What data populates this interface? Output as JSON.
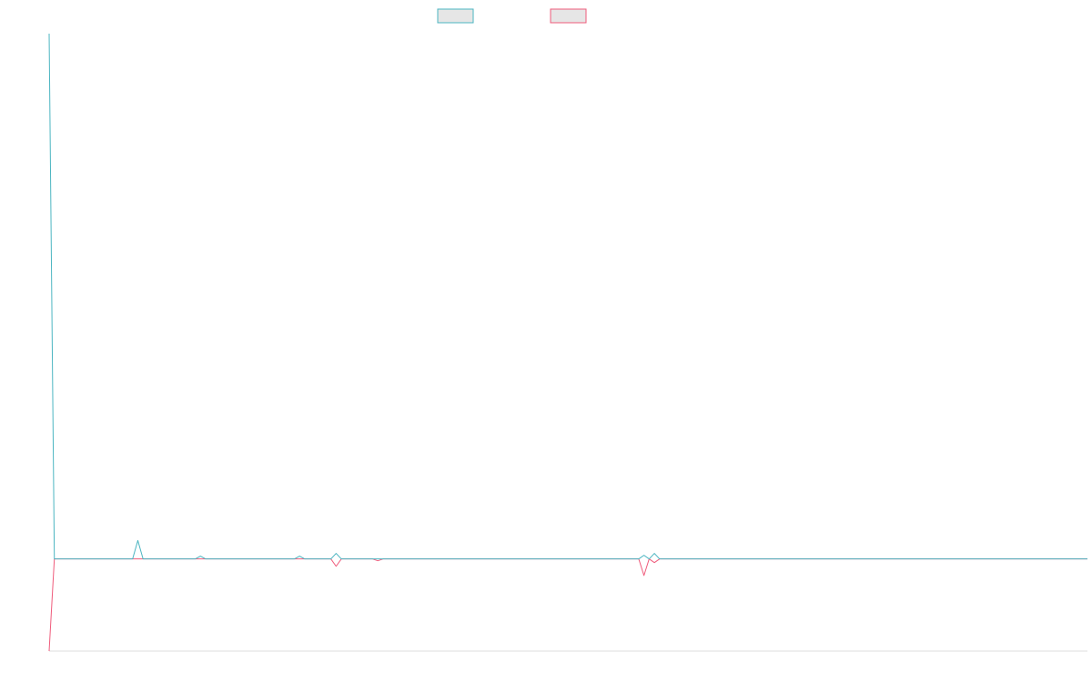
{
  "colors": {
    "series_a": "#4bb5c1",
    "series_b": "#ef5b7b",
    "legend_fill": "#e6e6e6",
    "axis": "#dddddd"
  },
  "chart_data": {
    "type": "line",
    "title": "",
    "xlabel": "",
    "ylabel": "",
    "grid": false,
    "legend": "top-center",
    "x_count": 200,
    "ylim": [
      -1.0,
      5.7
    ],
    "series": [
      {
        "key": "a",
        "color": "#4bb5c1",
        "points": [
          [
            0,
            5.7
          ],
          [
            1,
            0
          ],
          [
            16,
            0
          ],
          [
            17,
            0.2
          ],
          [
            18,
            0
          ],
          [
            28,
            0
          ],
          [
            29,
            0.03
          ],
          [
            30,
            0
          ],
          [
            47,
            0
          ],
          [
            48,
            0.03
          ],
          [
            49,
            0
          ],
          [
            54,
            0
          ],
          [
            55,
            0.06
          ],
          [
            56,
            0
          ],
          [
            113,
            0
          ],
          [
            114,
            0.04
          ],
          [
            115,
            0
          ],
          [
            116,
            0.06
          ],
          [
            117,
            0
          ],
          [
            199,
            0
          ]
        ]
      },
      {
        "key": "b",
        "color": "#ef5b7b",
        "points": [
          [
            0,
            -1.0
          ],
          [
            1,
            0
          ],
          [
            54,
            0
          ],
          [
            55,
            -0.08
          ],
          [
            56,
            0
          ],
          [
            62,
            0
          ],
          [
            63,
            -0.02
          ],
          [
            64,
            0
          ],
          [
            113,
            0
          ],
          [
            114,
            -0.18
          ],
          [
            115,
            0
          ],
          [
            116,
            -0.04
          ],
          [
            117,
            0
          ],
          [
            199,
            0
          ]
        ]
      }
    ]
  }
}
